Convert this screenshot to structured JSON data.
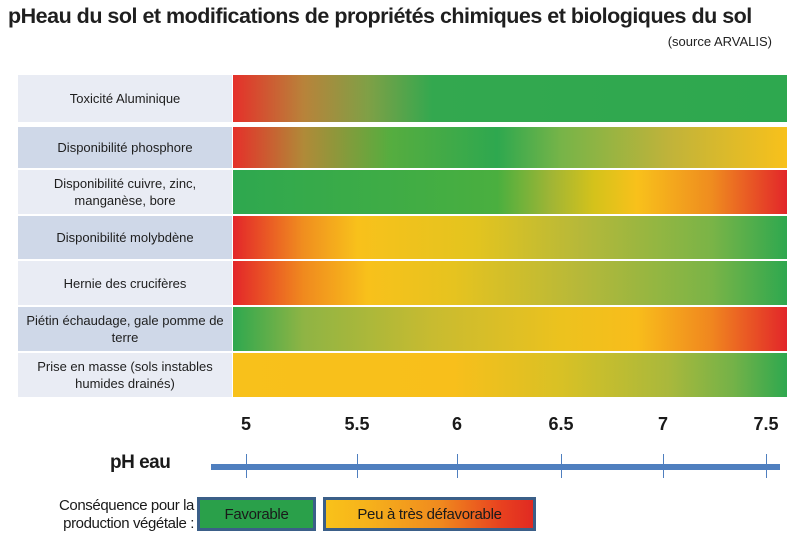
{
  "title": "pHeau du sol et modifications de propriétés chimiques et biologiques du sol",
  "source": "(source ARVALIS)",
  "chart_data": {
    "type": "heatmap",
    "title": "pHeau du sol et modifications de propriétés chimiques et biologiques du sol",
    "subtitle": "(source ARVALIS)",
    "xlabel": "pH eau",
    "ylabel": "",
    "x_ticks": [
      5,
      5.5,
      6,
      6.5,
      7,
      7.5
    ],
    "x_tick_labels": [
      "5",
      "5.5",
      "6",
      "6.5",
      "7",
      "7.5"
    ],
    "xlim": [
      4.97,
      7.55
    ],
    "color_scale": {
      "favorable": "#2ea84f",
      "intermediate": "#f8c11b",
      "unfavorable": "#e3262a"
    },
    "rows": [
      {
        "label": "Toxicité Aluminique",
        "stops": [
          [
            4.97,
            "#e5302a"
          ],
          [
            5.3,
            "#b8833a"
          ],
          [
            5.6,
            "#7fa046"
          ],
          [
            5.9,
            "#33a84f"
          ],
          [
            7.55,
            "#2ea84f"
          ]
        ]
      },
      {
        "label": "Disponibilité phosphore",
        "stops": [
          [
            4.97,
            "#e5302a"
          ],
          [
            5.3,
            "#b08a38"
          ],
          [
            5.7,
            "#56ad3f"
          ],
          [
            6.2,
            "#2ea84f"
          ],
          [
            6.5,
            "#77b448"
          ],
          [
            7.0,
            "#c0b33a"
          ],
          [
            7.55,
            "#f8c11b"
          ]
        ]
      },
      {
        "label": "Disponibilité  cuivre, zinc, manganèse, bore",
        "stops": [
          [
            4.97,
            "#2ea84f"
          ],
          [
            6.2,
            "#4aaf3f"
          ],
          [
            6.45,
            "#a0b535"
          ],
          [
            6.65,
            "#d4c21b"
          ],
          [
            6.85,
            "#f8c11b"
          ],
          [
            7.2,
            "#ef8c1f"
          ],
          [
            7.55,
            "#e2262a"
          ]
        ]
      },
      {
        "label": "Disponibilité molybdène",
        "stops": [
          [
            4.97,
            "#e3262a"
          ],
          [
            5.3,
            "#f08f1f"
          ],
          [
            5.55,
            "#f8c11b"
          ],
          [
            6.1,
            "#e3c41f"
          ],
          [
            6.6,
            "#b5b83a"
          ],
          [
            7.2,
            "#7ab447"
          ],
          [
            7.55,
            "#2ea84f"
          ]
        ]
      },
      {
        "label": "Hernie des crucifères",
        "stops": [
          [
            4.97,
            "#e3262a"
          ],
          [
            5.3,
            "#f08a1e"
          ],
          [
            5.6,
            "#f8c11b"
          ],
          [
            6.0,
            "#e6c31f"
          ],
          [
            6.6,
            "#b5b83a"
          ],
          [
            7.2,
            "#7ab447"
          ],
          [
            7.55,
            "#2ea84f"
          ]
        ]
      },
      {
        "label": "Piétin échaudage, gale  pomme de terre",
        "stops": [
          [
            4.97,
            "#2ea84f"
          ],
          [
            5.3,
            "#8fb444"
          ],
          [
            5.9,
            "#c8bb30"
          ],
          [
            6.5,
            "#ecc21e"
          ],
          [
            6.85,
            "#f8bd1b"
          ],
          [
            7.2,
            "#f0861f"
          ],
          [
            7.55,
            "#e2262a"
          ]
        ]
      },
      {
        "label": "Prise en masse (sols instables humides drainés)",
        "stops": [
          [
            4.97,
            "#f8c11b"
          ],
          [
            6.0,
            "#f8bf1b"
          ],
          [
            6.5,
            "#d8c125"
          ],
          [
            7.0,
            "#a9b83c"
          ],
          [
            7.3,
            "#74b248"
          ],
          [
            7.55,
            "#2ea84f"
          ]
        ]
      }
    ],
    "legend": {
      "title": "Conséquence pour la production végétale :",
      "items": [
        {
          "label": "Favorable",
          "color": "#2aa04a"
        },
        {
          "label": "Peu à très défavorable",
          "color": "gradient-yellow-to-red"
        }
      ]
    }
  },
  "legend": {
    "title_line1": "Conséquence pour la",
    "title_line2": "production végétale :",
    "favorable": "Favorable",
    "unfavorable": "Peu à très défavorable"
  }
}
